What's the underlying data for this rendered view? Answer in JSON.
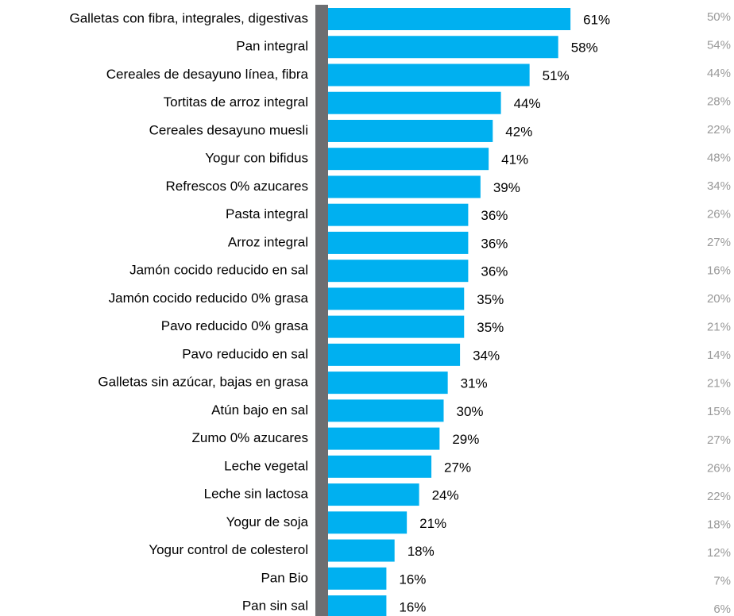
{
  "chart_data": {
    "type": "bar",
    "orientation": "horizontal",
    "categories": [
      "Galletas con fibra, integrales, digestivas",
      "Pan integral",
      "Cereales de desayuno línea, fibra",
      "Tortitas de arroz integral",
      "Cereales desayuno muesli",
      "Yogur con bifidus",
      "Refrescos 0% azucares",
      "Pasta integral",
      "Arroz integral",
      "Jamón cocido reducido en sal",
      "Jamón cocido reducido 0% grasa",
      "Pavo reducido 0% grasa",
      "Pavo reducido en sal",
      "Galletas sin azúcar, bajas en grasa",
      "Atún bajo en sal",
      "Zumo 0% azucares",
      "Leche vegetal",
      "Leche sin lactosa",
      "Yogur de soja",
      "Yogur control de colesterol",
      "Pan Bio",
      "Pan sin sal"
    ],
    "series": [
      {
        "color": "#00b0f0",
        "values": [
          61,
          58,
          51,
          44,
          42,
          41,
          39,
          36,
          36,
          36,
          35,
          35,
          34,
          31,
          30,
          29,
          27,
          24,
          21,
          18,
          16,
          16
        ],
        "value_labels": [
          "61%",
          "58%",
          "51%",
          "44%",
          "42%",
          "41%",
          "39%",
          "36%",
          "36%",
          "36%",
          "35%",
          "35%",
          "34%",
          "31%",
          "30%",
          "29%",
          "27%",
          "24%",
          "21%",
          "18%",
          "16%",
          "16%"
        ]
      },
      {
        "color": "#999999",
        "values": [
          50,
          54,
          44,
          28,
          22,
          48,
          34,
          26,
          27,
          16,
          20,
          21,
          14,
          21,
          15,
          27,
          26,
          22,
          18,
          12,
          7,
          6
        ],
        "value_labels": [
          "50%",
          "54%",
          "44%",
          "28%",
          "22%",
          "48%",
          "34%",
          "26%",
          "27%",
          "16%",
          "20%",
          "21%",
          "14%",
          "21%",
          "15%",
          "27%",
          "26%",
          "22%",
          "18%",
          "12%",
          "7%",
          "6%"
        ]
      }
    ]
  }
}
